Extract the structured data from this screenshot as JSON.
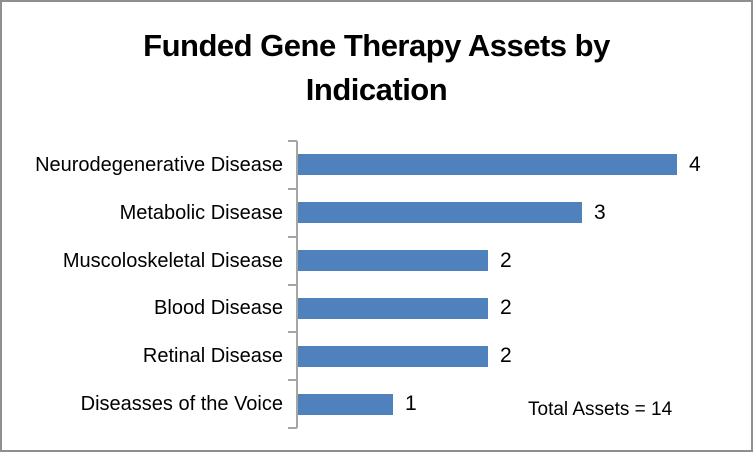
{
  "window": {
    "background": "#ffffff",
    "border_color": "#8f8f8f"
  },
  "chart_data": {
    "type": "bar",
    "orientation": "horizontal",
    "title": "Funded Gene Therapy Assets by Indication",
    "categories": [
      "Neurodegenerative Disease",
      "Metabolic Disease",
      "Muscoloskeletal Disease",
      "Blood Disease",
      "Retinal Disease",
      "Diseasses of the Voice"
    ],
    "values": [
      4,
      3,
      2,
      2,
      2,
      1
    ],
    "data_labels": [
      "4",
      "3",
      "2",
      "2",
      "2",
      "1"
    ],
    "annotation": "Total Assets = 14",
    "xlim": [
      0,
      4
    ],
    "legend": false,
    "gridlines": false,
    "bar_color": "#4f81bd",
    "axis_color": "#a6a6a6",
    "text_color": "#000000"
  }
}
